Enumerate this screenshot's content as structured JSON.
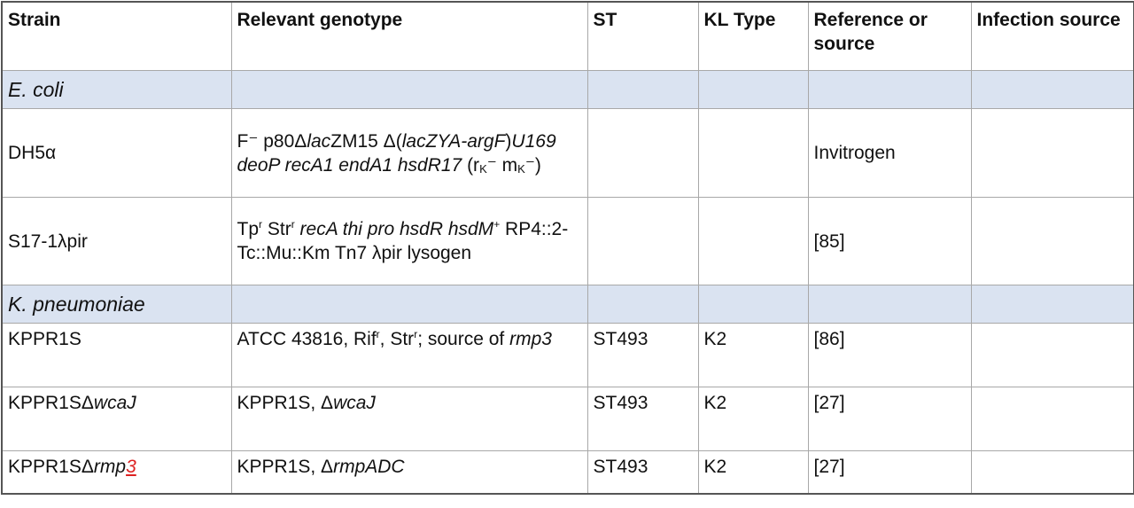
{
  "table": {
    "header": [
      "Strain",
      "Relevant genotype",
      "ST",
      "KL Type",
      "Reference or source",
      "Infection source"
    ],
    "rows": [
      {
        "section": [
          {
            "i": "E. coli"
          }
        ]
      },
      {
        "cells": [
          [
            "DH5α"
          ],
          [
            "F⁻ p80Δ",
            {
              "i": "lac"
            },
            "ZM15 Δ(",
            {
              "i": "lacZYA-argF"
            },
            ")",
            {
              "i": "U169 deoP recA1 endA1 hsdR17"
            },
            " (r",
            {
              "sub": "K"
            },
            "⁻ m",
            {
              "sub": "K"
            },
            "⁻)"
          ],
          [],
          [],
          [
            "Invitrogen"
          ],
          []
        ]
      },
      {
        "cells": [
          [
            "S17-1λpir"
          ],
          [
            "Tp",
            {
              "sup": "r"
            },
            " Str",
            {
              "sup": "r"
            },
            " ",
            {
              "i": "recA thi pro hsdR hsdM"
            },
            {
              "sup": "+"
            },
            " RP4::2-Tc::Mu::Km Tn7 λpir lysogen"
          ],
          [],
          [],
          [
            "[85]"
          ],
          []
        ]
      },
      {
        "section": [
          {
            "i": "K. pneumoniae"
          }
        ]
      },
      {
        "cells": [
          [
            "KPPR1S"
          ],
          [
            "ATCC 43816, Rif",
            {
              "sup": "r"
            },
            ", Str",
            {
              "sup": "r"
            },
            "; source of ",
            {
              "i": "rmp3"
            }
          ],
          [
            "ST493"
          ],
          [
            "K2"
          ],
          [
            "[86]"
          ],
          []
        ]
      },
      {
        "cells": [
          [
            "KPPR1SΔ",
            {
              "i": "wcaJ"
            }
          ],
          [
            "KPPR1S, Δ",
            {
              "i": "wcaJ"
            }
          ],
          [
            "ST493"
          ],
          [
            "K2"
          ],
          [
            "[27]"
          ],
          []
        ]
      },
      {
        "cells": [
          [
            "KPPR1SΔ",
            {
              "i": "rmp"
            },
            {
              "link": "3"
            }
          ],
          [
            "KPPR1S, Δ",
            {
              "i": "rmpADC"
            }
          ],
          [
            "ST493"
          ],
          [
            "K2"
          ],
          [
            "[27]"
          ],
          []
        ]
      }
    ]
  }
}
